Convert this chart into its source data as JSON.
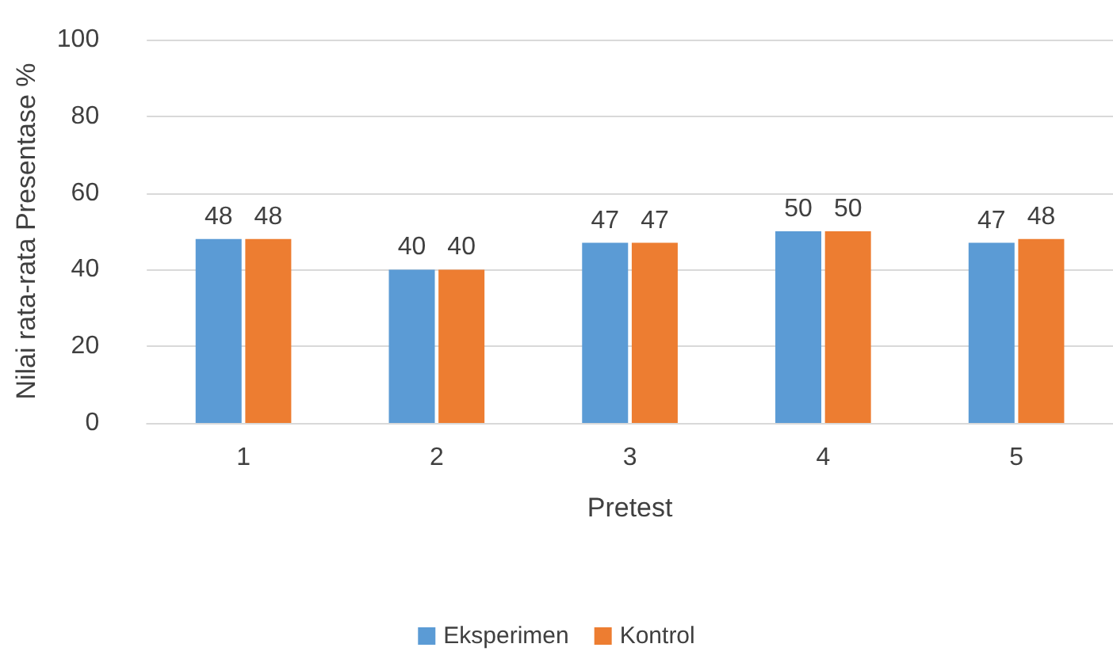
{
  "chart_data": {
    "type": "bar",
    "xlabel": "Pretest",
    "ylabel": "Nilai rata-rata Presentase %",
    "categories": [
      "1",
      "2",
      "3",
      "4",
      "5"
    ],
    "series": [
      {
        "name": "Eksperimen",
        "color": "#5b9bd5",
        "values": [
          48,
          40,
          47,
          50,
          47
        ]
      },
      {
        "name": "Kontrol",
        "color": "#ed7d31",
        "values": [
          48,
          40,
          47,
          50,
          48
        ]
      }
    ],
    "ylim": [
      0,
      100
    ],
    "yticks": [
      0,
      20,
      40,
      60,
      80,
      100
    ],
    "grid": "y",
    "legend": "bottom",
    "data_labels": true
  }
}
